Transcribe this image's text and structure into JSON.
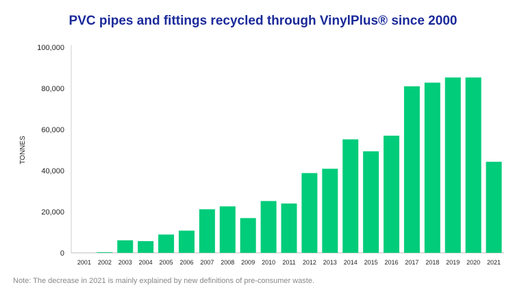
{
  "chart_data": {
    "type": "bar",
    "title": "PVC pipes and fittings recycled through VinylPlus® since 2000",
    "xlabel": "",
    "ylabel": "TONNES",
    "ylim": [
      0,
      100000
    ],
    "yticks": [
      0,
      20000,
      40000,
      60000,
      80000,
      100000
    ],
    "ytick_labels": [
      "0",
      "20,000",
      "40,000",
      "60,000",
      "80,000",
      "100,000"
    ],
    "categories": [
      "2001",
      "2002",
      "2003",
      "2004",
      "2005",
      "2006",
      "2007",
      "2008",
      "2009",
      "2010",
      "2011",
      "2012",
      "2013",
      "2014",
      "2015",
      "2016",
      "2017",
      "2018",
      "2019",
      "2020",
      "2021"
    ],
    "values": [
      0,
      300,
      6100,
      5700,
      8900,
      10800,
      21200,
      22600,
      16900,
      25200,
      24000,
      38800,
      40900,
      55200,
      49400,
      57000,
      81000,
      82800,
      85300,
      85300,
      44300
    ],
    "grid": false,
    "bar_color": "#00cc7a",
    "note": "Note: The decrease in 2021 is mainly explained by new definitions of pre-consumer waste."
  }
}
